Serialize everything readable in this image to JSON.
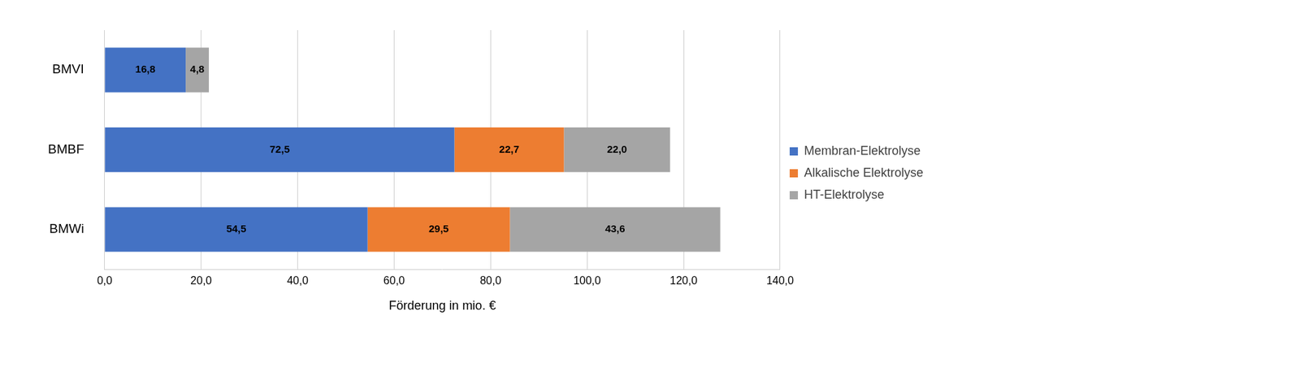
{
  "chart_data": {
    "type": "bar",
    "orientation": "horizontal",
    "stacked": true,
    "x_label": "Förderung in mio. €",
    "categories": [
      "BMVI",
      "BMBF",
      "BMWi"
    ],
    "series": [
      {
        "name": "Membran-Elektrolyse",
        "color": "#4472c4",
        "values": [
          16.8,
          72.5,
          54.5
        ],
        "value_labels": [
          "16,8",
          "72,5",
          "54,5"
        ]
      },
      {
        "name": "Alkalische Elektrolyse",
        "color": "#ed7d31",
        "values": [
          null,
          22.7,
          29.5
        ],
        "value_labels": [
          null,
          "22,7",
          "29,5"
        ]
      },
      {
        "name": "HT-Elektrolyse",
        "color": "#a5a5a5",
        "values": [
          4.8,
          22.0,
          43.6
        ],
        "value_labels": [
          "4,8",
          "22,0",
          "43,6"
        ]
      }
    ],
    "xlim": [
      0,
      140
    ],
    "xticks": [
      {
        "value": 0,
        "label": "0,0"
      },
      {
        "value": 20,
        "label": "20,0"
      },
      {
        "value": 40,
        "label": "40,0"
      },
      {
        "value": 60,
        "label": "60,0"
      },
      {
        "value": 80,
        "label": "80,0"
      },
      {
        "value": 100,
        "label": "100,0"
      },
      {
        "value": 120,
        "label": "120,0"
      },
      {
        "value": 140,
        "label": "140,0"
      }
    ],
    "grid": true,
    "legend": "right",
    "data_labels": true
  }
}
